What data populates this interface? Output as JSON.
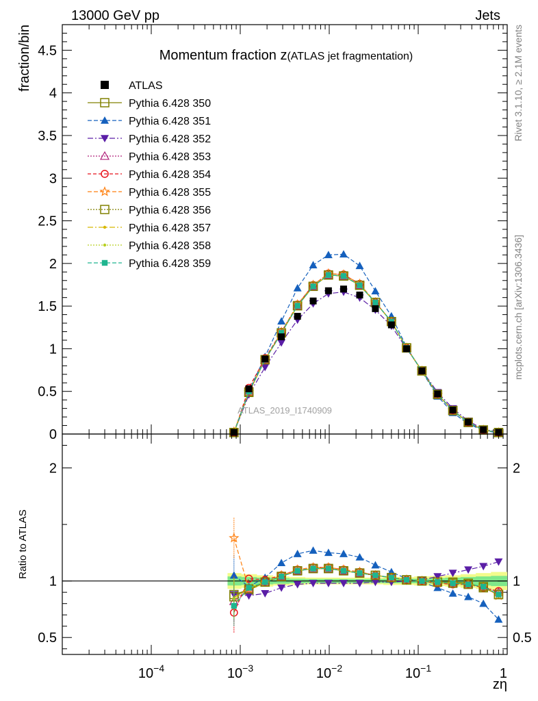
{
  "header": {
    "left": "13000 GeV pp",
    "right": "Jets"
  },
  "side_text": {
    "rivet": "Rivet 3.1.10, ≥ 2.1M events",
    "mcplots": "mcplots.cern.ch [arXiv:1306.3436]"
  },
  "watermark": "ATLAS_2019_I1740909",
  "chart_data": {
    "type": "line",
    "title_main": "Momentum fraction z",
    "title_sub": "(ATLAS jet fragmentation)",
    "xlabel": "zη",
    "ylabel_top": "fraction/bin",
    "ylabel_bottom": "Ratio to ATLAS",
    "x_scale": "log",
    "xlim": [
      1e-05,
      1
    ],
    "x_ticks": [
      {
        "v": 0.0001,
        "base": "10",
        "exp": "−4"
      },
      {
        "v": 0.001,
        "base": "10",
        "exp": "−3"
      },
      {
        "v": 0.01,
        "base": "10",
        "exp": "−2"
      },
      {
        "v": 0.1,
        "base": "10",
        "exp": "−1"
      },
      {
        "v": 1,
        "base": "1",
        "exp": ""
      }
    ],
    "ylim_top": [
      0,
      4.8
    ],
    "y_ticks_top": [
      "0",
      "0.5",
      "1",
      "1.5",
      "2",
      "2.5",
      "3",
      "3.5",
      "4",
      "4.5"
    ],
    "ylim_bottom": [
      0.35,
      2.3
    ],
    "y_ticks_bottom": [
      "0.5",
      "1",
      "2"
    ],
    "x": [
      0.00085,
      0.00125,
      0.0019,
      0.0029,
      0.0044,
      0.0066,
      0.0098,
      0.0145,
      0.022,
      0.033,
      0.05,
      0.074,
      0.11,
      0.165,
      0.245,
      0.365,
      0.54,
      0.8
    ],
    "data_name": "ATLAS",
    "data_values": [
      0.02,
      0.53,
      0.88,
      1.14,
      1.38,
      1.56,
      1.68,
      1.7,
      1.63,
      1.47,
      1.28,
      1.0,
      0.74,
      0.47,
      0.28,
      0.14,
      0.05,
      0.02
    ],
    "series": [
      {
        "name": "Pythia 6.428 350",
        "color": "#808000",
        "marker": "open-square",
        "dash": "",
        "width": 1.5,
        "ratio": [
          0.88,
          0.92,
          0.99,
          1.04,
          1.09,
          1.11,
          1.11,
          1.09,
          1.07,
          1.05,
          1.03,
          1.01,
          1.0,
          0.99,
          0.99,
          0.98,
          0.94,
          0.88
        ]
      },
      {
        "name": "Pythia 6.428 351",
        "color": "#1560bd",
        "marker": "up-triangle",
        "dash": "6,3",
        "width": 1.2,
        "ratio": [
          1.05,
          0.95,
          1.03,
          1.16,
          1.24,
          1.27,
          1.25,
          1.24,
          1.21,
          1.14,
          1.08,
          1.02,
          0.99,
          0.94,
          0.89,
          0.86,
          0.8,
          0.66
        ]
      },
      {
        "name": "Pythia 6.428 352",
        "color": "#5a1ea6",
        "marker": "down-triangle",
        "dash": "8,3,2,3",
        "width": 1.2,
        "ratio": [
          0.88,
          0.87,
          0.89,
          0.94,
          0.97,
          0.98,
          0.98,
          0.98,
          0.98,
          0.99,
          0.99,
          1.0,
          1.01,
          1.04,
          1.07,
          1.1,
          1.13,
          1.17
        ]
      },
      {
        "name": "Pythia 6.428 353",
        "color": "#b0207a",
        "marker": "open-up-triangle",
        "dash": "2,2",
        "width": 1.2,
        "ratio": [
          0.82,
          0.93,
          0.99,
          1.04,
          1.09,
          1.11,
          1.11,
          1.09,
          1.07,
          1.05,
          1.03,
          1.01,
          1.0,
          0.99,
          0.98,
          0.97,
          0.95,
          0.9
        ]
      },
      {
        "name": "Pythia 6.428 354",
        "color": "#e8121a",
        "marker": "open-circle",
        "dash": "5,3",
        "width": 1.2,
        "ratio": [
          0.72,
          1.02,
          1.01,
          1.05,
          1.1,
          1.12,
          1.12,
          1.1,
          1.08,
          1.05,
          1.03,
          1.01,
          1.0,
          0.98,
          0.97,
          0.97,
          0.94,
          0.91
        ]
      },
      {
        "name": "Pythia 6.428 355",
        "color": "#ff7f0e",
        "marker": "open-star",
        "dash": "6,3",
        "width": 1.2,
        "ratio": [
          1.38,
          0.93,
          0.99,
          1.05,
          1.1,
          1.12,
          1.12,
          1.1,
          1.08,
          1.05,
          1.03,
          1.01,
          1.0,
          0.98,
          0.98,
          0.97,
          0.95,
          0.87
        ]
      },
      {
        "name": "Pythia 6.428 356",
        "color": "#808000",
        "marker": "open-square",
        "dash": "2,2",
        "width": 1.2,
        "ratio": [
          0.86,
          0.93,
          0.99,
          1.04,
          1.09,
          1.11,
          1.11,
          1.09,
          1.07,
          1.05,
          1.03,
          1.01,
          1.0,
          0.99,
          0.98,
          0.97,
          0.95,
          0.88
        ]
      },
      {
        "name": "Pythia 6.428 357",
        "color": "#d8b800",
        "marker": "dot",
        "dash": "8,3,2,3",
        "width": 1.2,
        "ratio": [
          0.85,
          0.94,
          0.99,
          1.04,
          1.09,
          1.11,
          1.11,
          1.09,
          1.07,
          1.05,
          1.03,
          1.01,
          1.0,
          0.99,
          0.98,
          0.97,
          0.95,
          0.88
        ]
      },
      {
        "name": "Pythia 6.428 358",
        "color": "#b8d020",
        "marker": "dot",
        "dash": "2,2",
        "width": 1.2,
        "ratio": [
          0.84,
          0.93,
          0.99,
          1.04,
          1.09,
          1.11,
          1.11,
          1.09,
          1.07,
          1.05,
          1.03,
          1.01,
          1.0,
          0.99,
          0.98,
          0.97,
          0.95,
          0.88
        ]
      },
      {
        "name": "Pythia 6.428 359",
        "color": "#1fb58f",
        "marker": "filled-square",
        "dash": "6,3",
        "width": 1.2,
        "ratio": [
          0.78,
          0.94,
          0.99,
          1.04,
          1.09,
          1.11,
          1.11,
          1.09,
          1.07,
          1.05,
          1.03,
          1.01,
          1.0,
          0.99,
          0.98,
          0.97,
          0.95,
          0.88
        ]
      }
    ],
    "uncertainty_band": {
      "x_from": 0.00072,
      "outer_color": "#f2fb8c",
      "inner_color": "#7fe88a",
      "outer_halfwidth": [
        0.07,
        0.06,
        0.05,
        0.04,
        0.035,
        0.03,
        0.03,
        0.03,
        0.03,
        0.03,
        0.035,
        0.035,
        0.04,
        0.045,
        0.05,
        0.06,
        0.07,
        0.08
      ],
      "inner_halfwidth": [
        0.04,
        0.035,
        0.03,
        0.025,
        0.02,
        0.018,
        0.018,
        0.018,
        0.018,
        0.018,
        0.02,
        0.02,
        0.02,
        0.025,
        0.03,
        0.035,
        0.04,
        0.045
      ]
    }
  }
}
